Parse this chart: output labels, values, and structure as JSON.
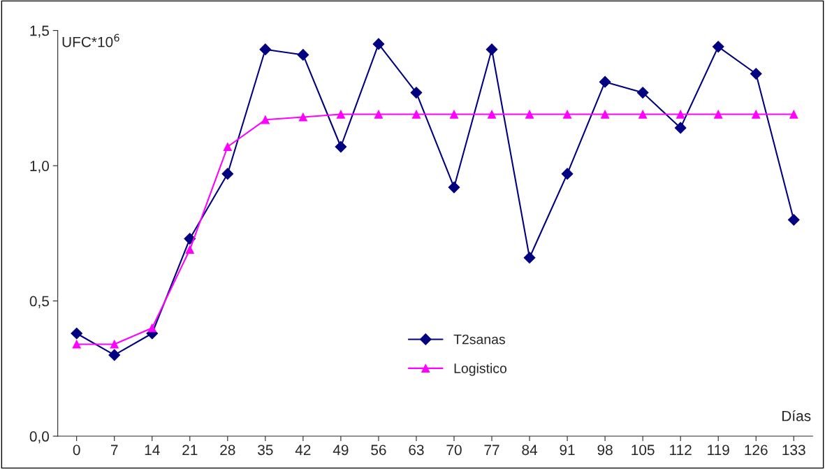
{
  "chart_data": {
    "type": "line",
    "categories": [
      "0",
      "7",
      "14",
      "21",
      "28",
      "35",
      "42",
      "49",
      "56",
      "63",
      "70",
      "77",
      "84",
      "91",
      "98",
      "105",
      "112",
      "119",
      "126",
      "133"
    ],
    "series": [
      {
        "name": "T2sanas",
        "color": "#000080",
        "marker": "diamond",
        "values": [
          0.38,
          0.3,
          0.38,
          0.73,
          0.97,
          1.43,
          1.41,
          1.07,
          1.45,
          1.27,
          0.92,
          1.43,
          0.66,
          0.97,
          1.31,
          1.27,
          1.14,
          1.44,
          1.34,
          0.8
        ]
      },
      {
        "name": "Logistico",
        "color": "#ff00ff",
        "marker": "triangle",
        "values": [
          0.34,
          0.34,
          0.4,
          0.69,
          1.07,
          1.17,
          1.18,
          1.19,
          1.19,
          1.19,
          1.19,
          1.19,
          1.19,
          1.19,
          1.19,
          1.19,
          1.19,
          1.19,
          1.19,
          1.19
        ]
      }
    ],
    "ylabel": "UFC*10$^{6}$",
    "xlabel": "Días",
    "ylim": [
      0,
      1.5
    ],
    "yticks": [
      {
        "value": 0,
        "label": "0,0"
      },
      {
        "value": 0.5,
        "label": "0,5"
      },
      {
        "value": 1.0,
        "label": "1,0"
      },
      {
        "value": 1.5,
        "label": "1,5"
      }
    ],
    "grid": false,
    "legend": "bottom",
    "line_style": "solid"
  }
}
